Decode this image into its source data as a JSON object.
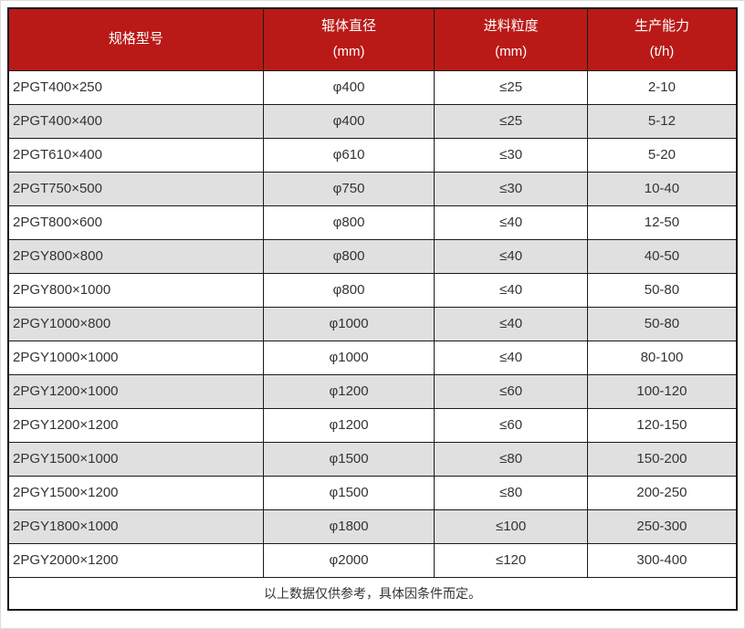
{
  "colors": {
    "header_bg": "#b91a17",
    "header_text": "#ffffff",
    "row_alt_bg": "#e0e0e0",
    "border": "#1a1a1a",
    "text": "#333333"
  },
  "table": {
    "columns": [
      {
        "title": "规格型号",
        "unit": ""
      },
      {
        "title": "辊体直径",
        "unit": "(mm)"
      },
      {
        "title": "进料粒度",
        "unit": "(mm)"
      },
      {
        "title": "生产能力",
        "unit": "(t/h)"
      }
    ],
    "rows": [
      {
        "model": "2PGT400×250",
        "roller_diameter": "φ400",
        "feed_size": "≤25",
        "capacity": "2-10"
      },
      {
        "model": "2PGT400×400",
        "roller_diameter": "φ400",
        "feed_size": "≤25",
        "capacity": "5-12"
      },
      {
        "model": "2PGT610×400",
        "roller_diameter": "φ610",
        "feed_size": "≤30",
        "capacity": "5-20"
      },
      {
        "model": "2PGT750×500",
        "roller_diameter": "φ750",
        "feed_size": "≤30",
        "capacity": "10-40"
      },
      {
        "model": "2PGT800×600",
        "roller_diameter": "φ800",
        "feed_size": "≤40",
        "capacity": "12-50"
      },
      {
        "model": "2PGY800×800",
        "roller_diameter": "φ800",
        "feed_size": "≤40",
        "capacity": "40-50"
      },
      {
        "model": "2PGY800×1000",
        "roller_diameter": "φ800",
        "feed_size": "≤40",
        "capacity": "50-80"
      },
      {
        "model": "2PGY1000×800",
        "roller_diameter": "φ1000",
        "feed_size": "≤40",
        "capacity": "50-80"
      },
      {
        "model": "2PGY1000×1000",
        "roller_diameter": "φ1000",
        "feed_size": "≤40",
        "capacity": "80-100"
      },
      {
        "model": "2PGY1200×1000",
        "roller_diameter": "φ1200",
        "feed_size": "≤60",
        "capacity": "100-120"
      },
      {
        "model": "2PGY1200×1200",
        "roller_diameter": "φ1200",
        "feed_size": "≤60",
        "capacity": "120-150"
      },
      {
        "model": "2PGY1500×1000",
        "roller_diameter": "φ1500",
        "feed_size": "≤80",
        "capacity": "150-200"
      },
      {
        "model": "2PGY1500×1200",
        "roller_diameter": "φ1500",
        "feed_size": "≤80",
        "capacity": "200-250"
      },
      {
        "model": "2PGY1800×1000",
        "roller_diameter": "φ1800",
        "feed_size": "≤100",
        "capacity": "250-300"
      },
      {
        "model": "2PGY2000×1200",
        "roller_diameter": "φ2000",
        "feed_size": "≤120",
        "capacity": "300-400"
      }
    ],
    "footer_note": "以上数据仅供参考，具体因条件而定。"
  }
}
